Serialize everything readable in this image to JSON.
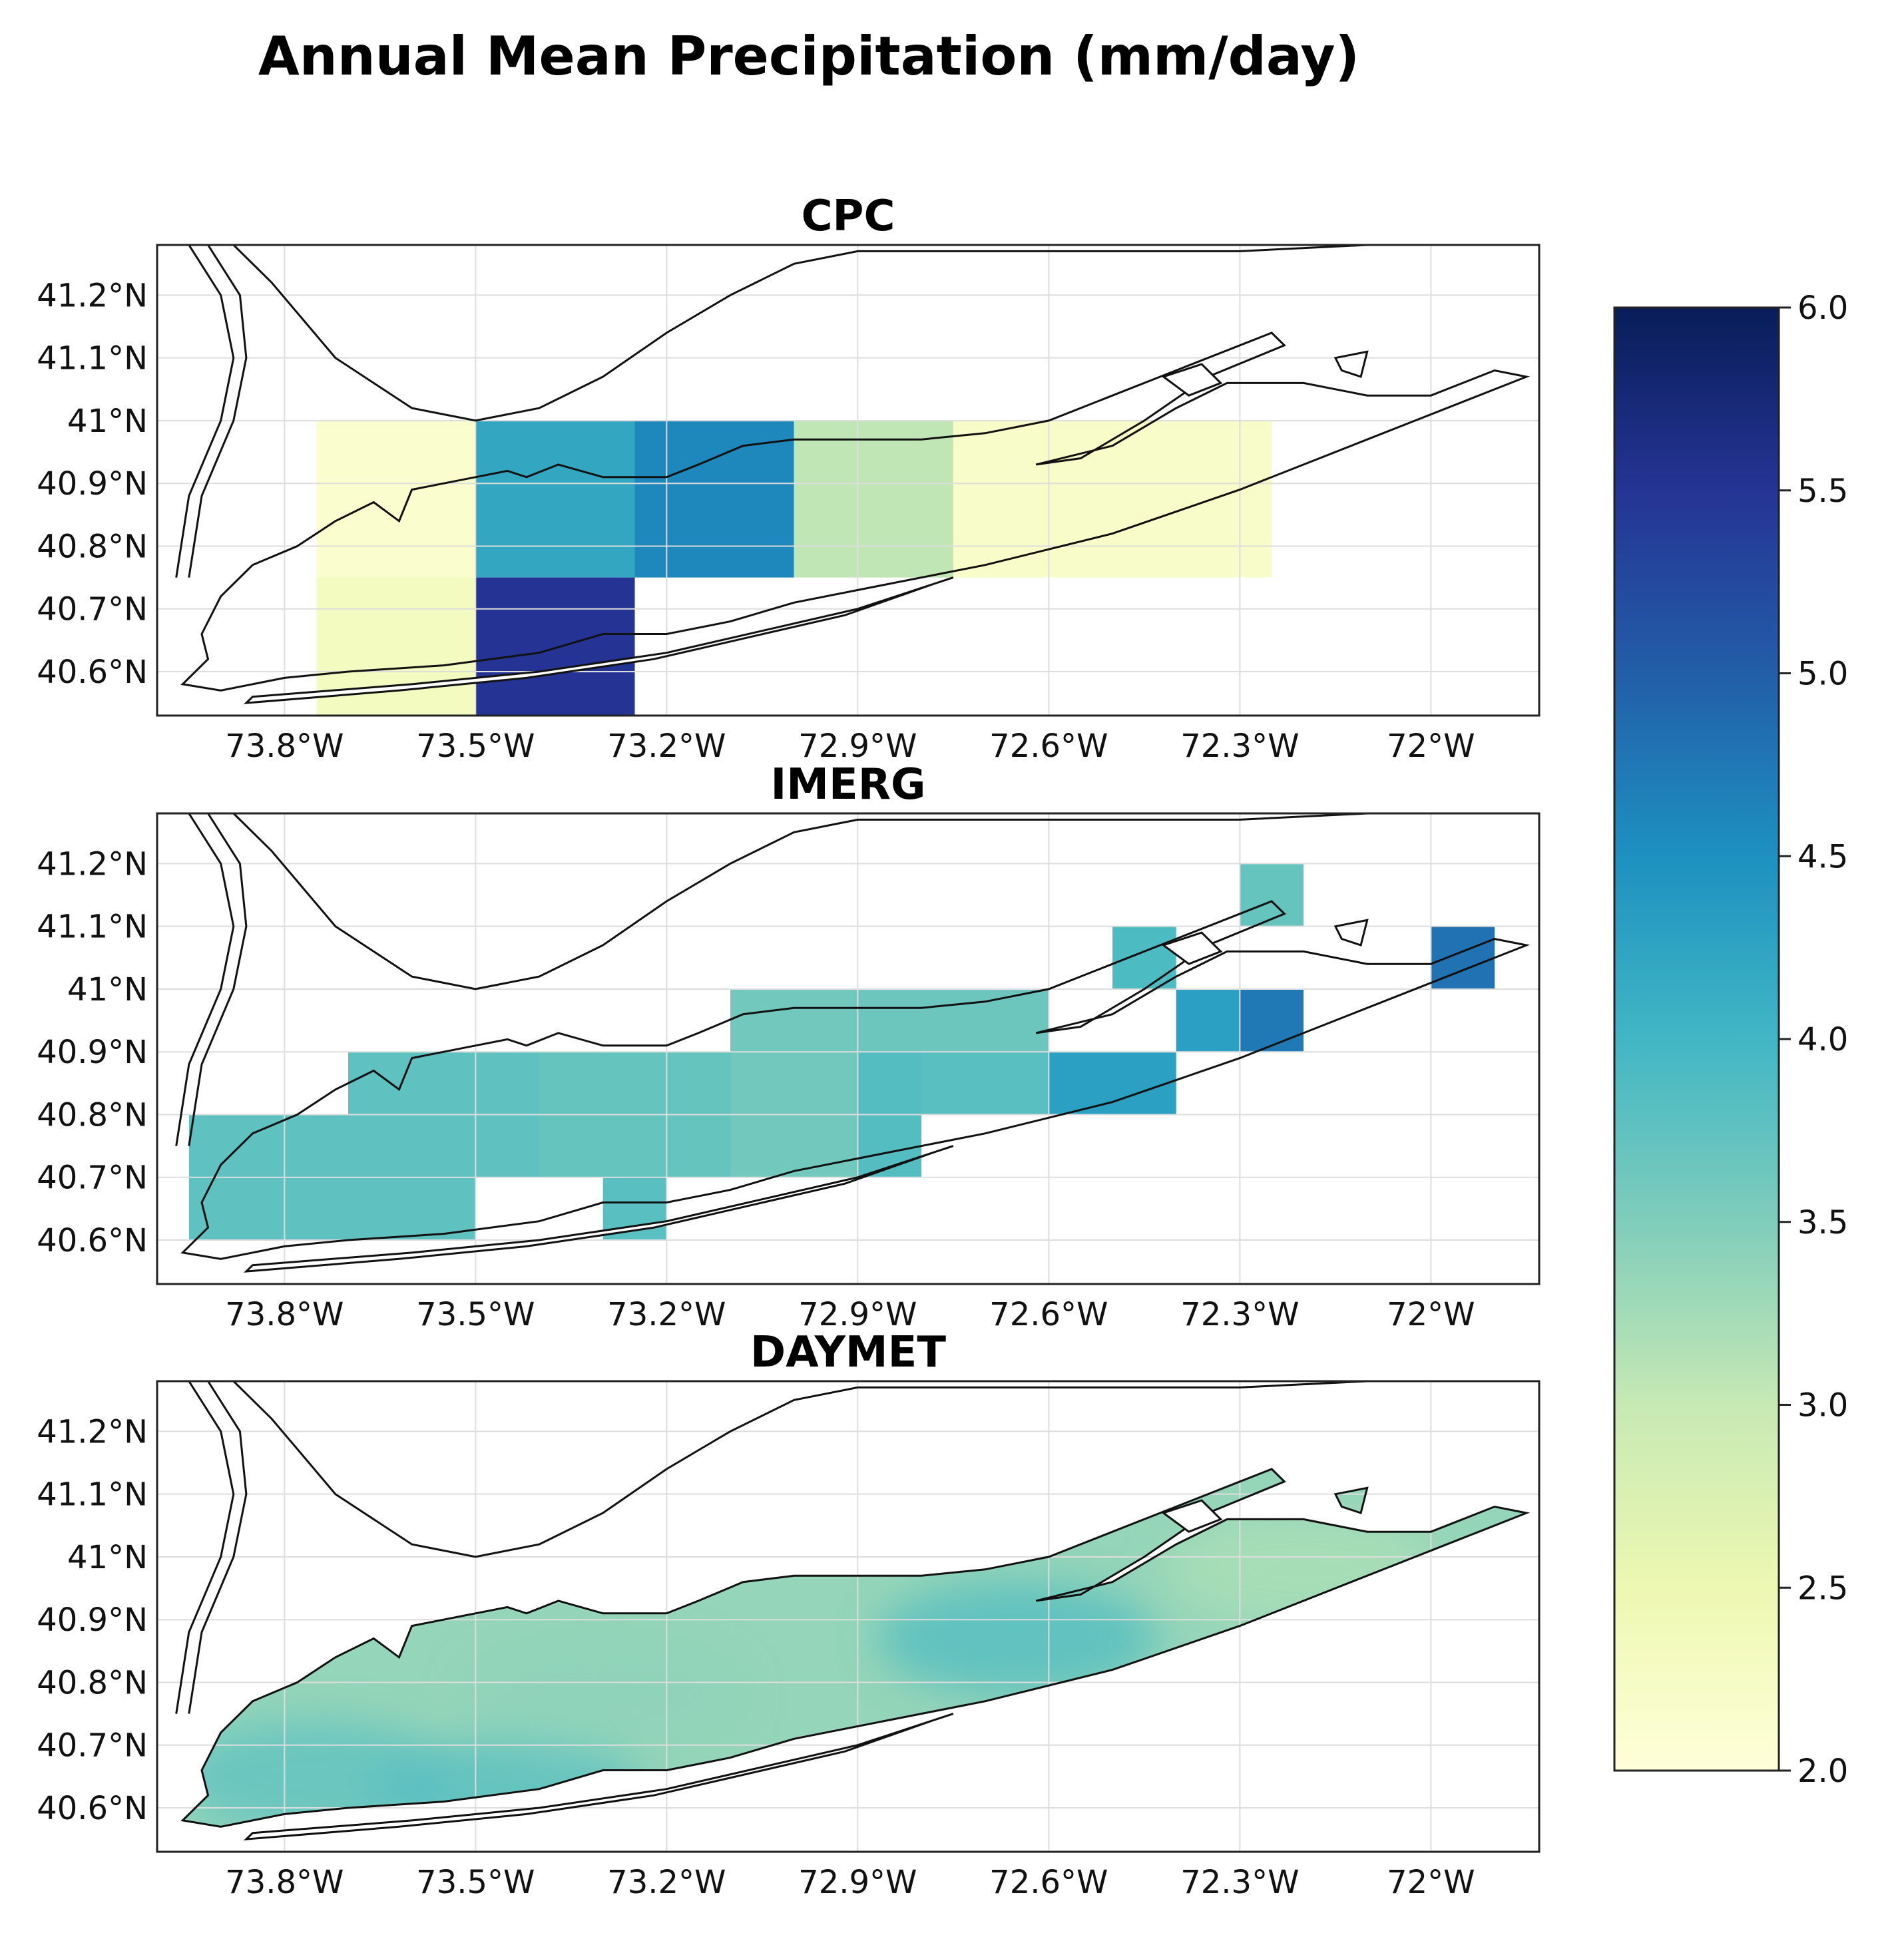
{
  "title": "Annual Mean Precipitation (mm/day)",
  "colors": {
    "coast": "#111111",
    "grid": "#dddddd",
    "frame": "#222222",
    "ylgnbu": [
      "#ffffd9",
      "#edf8b1",
      "#c7e9b4",
      "#7fcdbb",
      "#41b6c4",
      "#1d91c0",
      "#225ea8",
      "#253494",
      "#081d58"
    ]
  },
  "chart_data": [
    {
      "type": "heatmap",
      "title": "CPC",
      "xlabel": "",
      "ylabel": "",
      "xlim": [
        -74.0,
        -71.83
      ],
      "ylim": [
        40.53,
        41.28
      ],
      "xticks": [
        -73.8,
        -73.5,
        -73.2,
        -72.9,
        -72.6,
        -72.3,
        -72.0
      ],
      "xtick_labels": [
        "73.8°W",
        "73.5°W",
        "73.2°W",
        "72.9°W",
        "72.6°W",
        "72.3°W",
        "72°W"
      ],
      "yticks": [
        40.6,
        40.7,
        40.8,
        40.9,
        41.0,
        41.1,
        41.2
      ],
      "ytick_labels": [
        "40.6°N",
        "40.7°N",
        "40.8°N",
        "40.9°N",
        "41°N",
        "41.1°N",
        "41.2°N"
      ],
      "cells": [
        {
          "lon0": -73.75,
          "lon1": -73.5,
          "lat0": 40.75,
          "lat1": 41.0,
          "value": 2.15
        },
        {
          "lon0": -73.75,
          "lon1": -73.5,
          "lat0": 40.53,
          "lat1": 40.75,
          "value": 2.3
        },
        {
          "lon0": -73.5,
          "lon1": -73.25,
          "lat0": 40.75,
          "lat1": 41.0,
          "value": 4.2
        },
        {
          "lon0": -73.5,
          "lon1": -73.25,
          "lat0": 40.53,
          "lat1": 40.75,
          "value": 5.5
        },
        {
          "lon0": -73.25,
          "lon1": -73.0,
          "lat0": 40.75,
          "lat1": 41.0,
          "value": 4.6
        },
        {
          "lon0": -73.0,
          "lon1": -72.75,
          "lat0": 40.75,
          "lat1": 41.0,
          "value": 3.05
        },
        {
          "lon0": -72.75,
          "lon1": -72.25,
          "lat0": 40.75,
          "lat1": 41.0,
          "value": 2.2
        }
      ]
    },
    {
      "type": "heatmap",
      "title": "IMERG",
      "xlabel": "",
      "ylabel": "",
      "xlim": [
        -74.0,
        -71.83
      ],
      "ylim": [
        40.53,
        41.28
      ],
      "xticks": [
        -73.8,
        -73.5,
        -73.2,
        -72.9,
        -72.6,
        -72.3,
        -72.0
      ],
      "xtick_labels": [
        "73.8°W",
        "73.5°W",
        "73.2°W",
        "72.9°W",
        "72.6°W",
        "72.3°W",
        "72°W"
      ],
      "yticks": [
        40.6,
        40.7,
        40.8,
        40.9,
        41.0,
        41.1,
        41.2
      ],
      "ytick_labels": [
        "40.6°N",
        "40.7°N",
        "40.8°N",
        "40.9°N",
        "41°N",
        "41.1°N",
        "41.2°N"
      ],
      "cells": [
        {
          "lon0": -73.95,
          "lon1": -73.5,
          "lat0": 40.6,
          "lat1": 40.8,
          "value": 3.75
        },
        {
          "lon0": -73.7,
          "lon1": -73.4,
          "lat0": 40.7,
          "lat1": 40.9,
          "value": 3.75
        },
        {
          "lon0": -73.4,
          "lon1": -73.1,
          "lat0": 40.7,
          "lat1": 40.9,
          "value": 3.7
        },
        {
          "lon0": -73.3,
          "lon1": -73.2,
          "lat0": 40.6,
          "lat1": 40.7,
          "value": 3.8
        },
        {
          "lon0": -73.1,
          "lon1": -72.9,
          "lat0": 40.7,
          "lat1": 41.0,
          "value": 3.6
        },
        {
          "lon0": -72.9,
          "lon1": -72.8,
          "lat0": 40.7,
          "lat1": 40.9,
          "value": 3.85
        },
        {
          "lon0": -72.9,
          "lon1": -72.6,
          "lat0": 40.9,
          "lat1": 41.0,
          "value": 3.65
        },
        {
          "lon0": -72.8,
          "lon1": -72.6,
          "lat0": 40.8,
          "lat1": 40.9,
          "value": 3.8
        },
        {
          "lon0": -72.6,
          "lon1": -72.4,
          "lat0": 40.8,
          "lat1": 40.9,
          "value": 4.3
        },
        {
          "lon0": -72.5,
          "lon1": -72.4,
          "lat0": 41.0,
          "lat1": 41.1,
          "value": 3.9
        },
        {
          "lon0": -72.4,
          "lon1": -72.3,
          "lat0": 40.9,
          "lat1": 41.0,
          "value": 4.3
        },
        {
          "lon0": -72.3,
          "lon1": -72.2,
          "lat0": 40.9,
          "lat1": 41.0,
          "value": 4.75
        },
        {
          "lon0": -72.3,
          "lon1": -72.2,
          "lat0": 41.1,
          "lat1": 41.2,
          "value": 3.7
        },
        {
          "lon0": -72.0,
          "lon1": -71.9,
          "lat0": 41.0,
          "lat1": 41.1,
          "value": 4.8
        }
      ]
    },
    {
      "type": "heatmap",
      "title": "DAYMET",
      "xlabel": "",
      "ylabel": "",
      "xlim": [
        -74.0,
        -71.83
      ],
      "ylim": [
        40.53,
        41.28
      ],
      "xticks": [
        -73.8,
        -73.5,
        -73.2,
        -72.9,
        -72.6,
        -72.3,
        -72.0
      ],
      "xtick_labels": [
        "73.8°W",
        "73.5°W",
        "73.2°W",
        "72.9°W",
        "72.6°W",
        "72.3°W",
        "72°W"
      ],
      "yticks": [
        40.6,
        40.7,
        40.8,
        40.9,
        41.0,
        41.1,
        41.2
      ],
      "ytick_labels": [
        "40.6°N",
        "40.7°N",
        "40.8°N",
        "40.9°N",
        "41°N",
        "41.1°N",
        "41.2°N"
      ],
      "field": "continuous over Long Island land, about 3.2–3.8 mm/day",
      "base_value": 3.35,
      "hotspots": [
        {
          "lon": -73.75,
          "lat": 40.65,
          "value": 3.75
        },
        {
          "lon": -73.45,
          "lat": 40.62,
          "value": 3.8
        },
        {
          "lon": -72.65,
          "lat": 40.87,
          "value": 3.85
        },
        {
          "lon": -73.3,
          "lat": 40.78,
          "value": 3.4
        },
        {
          "lon": -72.2,
          "lat": 40.98,
          "value": 3.2
        }
      ]
    }
  ],
  "colorbar": {
    "min": 2.0,
    "max": 6.0,
    "ticks": [
      2.0,
      2.5,
      3.0,
      3.5,
      4.0,
      4.5,
      5.0,
      5.5,
      6.0
    ],
    "tick_labels": [
      "2.0",
      "2.5",
      "3.0",
      "3.5",
      "4.0",
      "4.5",
      "5.0",
      "5.5",
      "6.0"
    ]
  }
}
